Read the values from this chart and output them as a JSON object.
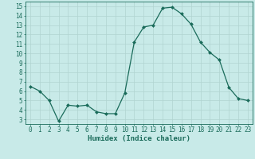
{
  "x": [
    0,
    1,
    2,
    3,
    4,
    5,
    6,
    7,
    8,
    9,
    10,
    11,
    12,
    13,
    14,
    15,
    16,
    17,
    18,
    19,
    20,
    21,
    22,
    23
  ],
  "y": [
    6.5,
    6.0,
    5.0,
    2.8,
    4.5,
    4.4,
    4.5,
    3.8,
    3.6,
    3.6,
    5.8,
    11.2,
    12.8,
    13.0,
    14.8,
    14.9,
    14.2,
    13.1,
    11.2,
    10.1,
    9.3,
    6.4,
    5.2,
    5.0
  ],
  "line_color": "#1a6b5a",
  "marker": "D",
  "marker_size": 2.0,
  "bg_color": "#c8eae8",
  "grid_color": "#b0d4d0",
  "xlabel": "Humidex (Indice chaleur)",
  "ylim": [
    2.5,
    15.5
  ],
  "xlim": [
    -0.5,
    23.5
  ],
  "yticks": [
    3,
    4,
    5,
    6,
    7,
    8,
    9,
    10,
    11,
    12,
    13,
    14,
    15
  ],
  "xticks": [
    0,
    1,
    2,
    3,
    4,
    5,
    6,
    7,
    8,
    9,
    10,
    11,
    12,
    13,
    14,
    15,
    16,
    17,
    18,
    19,
    20,
    21,
    22,
    23
  ],
  "tick_color": "#1a6b5a",
  "label_fontsize": 6.5,
  "tick_fontsize": 5.5,
  "line_width": 0.9
}
